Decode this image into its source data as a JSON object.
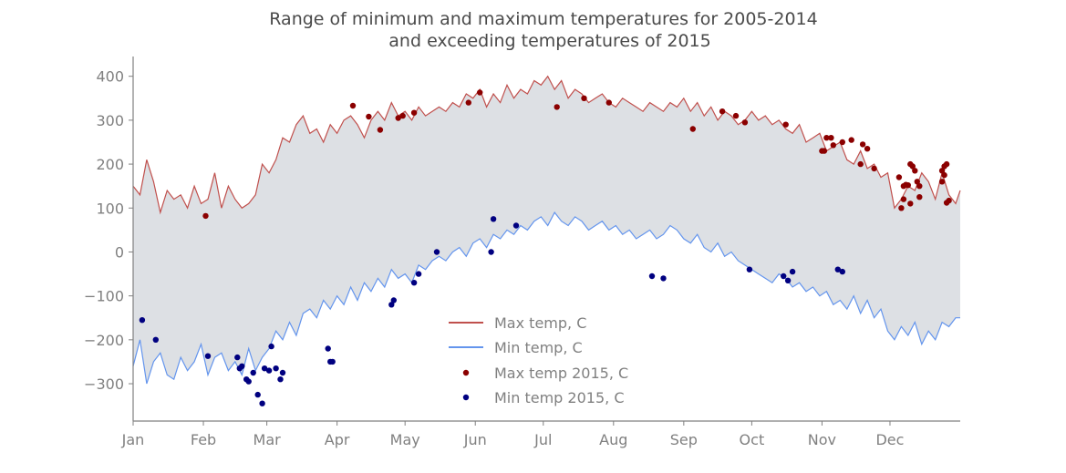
{
  "chart_data": {
    "type": "line",
    "title_line1": "Range of minimum and maximum temperatures for 2005-2014",
    "title_line2": "and exceeding temperatures of 2015",
    "xlabel": "",
    "ylabel": "",
    "xlim": [
      0,
      365
    ],
    "ylim": [
      -385,
      445
    ],
    "grid": false,
    "legend_position": "lower-center",
    "x_ticks": [
      {
        "label": "Jan",
        "day": 0
      },
      {
        "label": "Feb",
        "day": 31
      },
      {
        "label": "Mar",
        "day": 59
      },
      {
        "label": "Apr",
        "day": 90
      },
      {
        "label": "May",
        "day": 120
      },
      {
        "label": "Jun",
        "day": 151
      },
      {
        "label": "Jul",
        "day": 181
      },
      {
        "label": "Aug",
        "day": 212
      },
      {
        "label": "Sep",
        "day": 243
      },
      {
        "label": "Oct",
        "day": 273
      },
      {
        "label": "Nov",
        "day": 304
      },
      {
        "label": "Dec",
        "day": 334
      }
    ],
    "y_ticks": [
      {
        "label": "400",
        "value": 400
      },
      {
        "label": "300",
        "value": 300
      },
      {
        "label": "200",
        "value": 200
      },
      {
        "label": "100",
        "value": 100
      },
      {
        "label": "0",
        "value": 0
      },
      {
        "label": "−100",
        "value": -100
      },
      {
        "label": "−200",
        "value": -200
      },
      {
        "label": "−300",
        "value": -300
      }
    ],
    "colors": {
      "max_line": "#c0504d",
      "min_line": "#6495ed",
      "fill": "#dde0e4",
      "max_2015": "#8b0000",
      "min_2015": "#000080"
    },
    "series": [
      {
        "name": "Max temp, C",
        "type": "line",
        "x": [
          0,
          3,
          6,
          9,
          12,
          15,
          18,
          21,
          24,
          27,
          30,
          33,
          36,
          39,
          42,
          45,
          48,
          51,
          54,
          57,
          60,
          63,
          66,
          69,
          72,
          75,
          78,
          81,
          84,
          87,
          90,
          93,
          96,
          99,
          102,
          105,
          108,
          111,
          114,
          117,
          120,
          123,
          126,
          129,
          132,
          135,
          138,
          141,
          144,
          147,
          150,
          153,
          156,
          159,
          162,
          165,
          168,
          171,
          174,
          177,
          180,
          183,
          186,
          189,
          192,
          195,
          198,
          201,
          204,
          207,
          210,
          213,
          216,
          219,
          222,
          225,
          228,
          231,
          234,
          237,
          240,
          243,
          246,
          249,
          252,
          255,
          258,
          261,
          264,
          267,
          270,
          273,
          276,
          279,
          282,
          285,
          288,
          291,
          294,
          297,
          300,
          303,
          306,
          309,
          312,
          315,
          318,
          321,
          324,
          327,
          330,
          333,
          336,
          339,
          342,
          345,
          348,
          351,
          354,
          357,
          360,
          363,
          365
        ],
        "y": [
          150,
          130,
          210,
          160,
          90,
          140,
          120,
          130,
          100,
          150,
          110,
          120,
          180,
          100,
          150,
          120,
          100,
          110,
          130,
          200,
          180,
          210,
          260,
          250,
          290,
          310,
          270,
          280,
          250,
          290,
          270,
          300,
          310,
          290,
          260,
          300,
          320,
          300,
          340,
          310,
          320,
          300,
          330,
          310,
          320,
          330,
          320,
          340,
          330,
          360,
          350,
          370,
          330,
          360,
          340,
          380,
          350,
          370,
          360,
          390,
          380,
          400,
          370,
          390,
          350,
          370,
          360,
          340,
          350,
          360,
          340,
          330,
          350,
          340,
          330,
          320,
          340,
          330,
          320,
          340,
          330,
          350,
          320,
          340,
          310,
          330,
          300,
          320,
          310,
          290,
          300,
          320,
          300,
          310,
          290,
          300,
          280,
          270,
          290,
          250,
          260,
          270,
          230,
          240,
          250,
          210,
          200,
          230,
          190,
          200,
          170,
          180,
          100,
          120,
          150,
          140,
          180,
          160,
          120,
          180,
          130,
          110,
          140
        ]
      },
      {
        "name": "Min temp, C",
        "type": "line",
        "x": [
          0,
          3,
          6,
          9,
          12,
          15,
          18,
          21,
          24,
          27,
          30,
          33,
          36,
          39,
          42,
          45,
          48,
          51,
          54,
          57,
          60,
          63,
          66,
          69,
          72,
          75,
          78,
          81,
          84,
          87,
          90,
          93,
          96,
          99,
          102,
          105,
          108,
          111,
          114,
          117,
          120,
          123,
          126,
          129,
          132,
          135,
          138,
          141,
          144,
          147,
          150,
          153,
          156,
          159,
          162,
          165,
          168,
          171,
          174,
          177,
          180,
          183,
          186,
          189,
          192,
          195,
          198,
          201,
          204,
          207,
          210,
          213,
          216,
          219,
          222,
          225,
          228,
          231,
          234,
          237,
          240,
          243,
          246,
          249,
          252,
          255,
          258,
          261,
          264,
          267,
          270,
          273,
          276,
          279,
          282,
          285,
          288,
          291,
          294,
          297,
          300,
          303,
          306,
          309,
          312,
          315,
          318,
          321,
          324,
          327,
          330,
          333,
          336,
          339,
          342,
          345,
          348,
          351,
          354,
          357,
          360,
          363,
          365
        ],
        "y": [
          -260,
          -200,
          -300,
          -250,
          -230,
          -280,
          -290,
          -240,
          -270,
          -250,
          -210,
          -280,
          -240,
          -230,
          -270,
          -250,
          -280,
          -220,
          -270,
          -240,
          -220,
          -180,
          -200,
          -160,
          -190,
          -140,
          -130,
          -150,
          -110,
          -130,
          -100,
          -120,
          -80,
          -110,
          -70,
          -90,
          -60,
          -80,
          -40,
          -60,
          -50,
          -70,
          -30,
          -40,
          -20,
          -10,
          -20,
          0,
          10,
          -10,
          20,
          30,
          10,
          40,
          30,
          50,
          40,
          60,
          50,
          70,
          80,
          60,
          90,
          70,
          60,
          80,
          70,
          50,
          60,
          70,
          50,
          60,
          40,
          50,
          30,
          40,
          50,
          30,
          40,
          60,
          50,
          30,
          20,
          40,
          10,
          0,
          20,
          -10,
          0,
          -20,
          -30,
          -40,
          -50,
          -60,
          -70,
          -50,
          -60,
          -80,
          -70,
          -90,
          -80,
          -100,
          -90,
          -120,
          -110,
          -130,
          -100,
          -140,
          -110,
          -150,
          -130,
          -180,
          -200,
          -170,
          -190,
          -160,
          -210,
          -180,
          -200,
          -160,
          -170,
          -150,
          -150
        ]
      },
      {
        "name": "Max temp 2015, C",
        "type": "scatter",
        "x": [
          32,
          97,
          104,
          109,
          117,
          119,
          124,
          148,
          153,
          187,
          199,
          210,
          247,
          260,
          266,
          270,
          288,
          305,
          308,
          313,
          317,
          322,
          324,
          327,
          338,
          340,
          343,
          347,
          357,
          358,
          359
        ],
        "y": [
          82,
          333,
          308,
          278,
          305,
          310,
          317,
          340,
          363,
          330,
          350,
          340,
          280,
          320,
          310,
          295,
          290,
          230,
          260,
          250,
          255,
          245,
          235,
          190,
          170,
          150,
          110,
          125,
          160,
          195,
          200
        ],
        "points_extra": [
          [
            304,
            230
          ],
          [
            306,
            260
          ],
          [
            309,
            243
          ],
          [
            321,
            200
          ],
          [
            339,
            100
          ],
          [
            340,
            120
          ],
          [
            341,
            153
          ],
          [
            342,
            152
          ],
          [
            343,
            200
          ],
          [
            344,
            195
          ],
          [
            345,
            185
          ],
          [
            346,
            160
          ],
          [
            347,
            150
          ],
          [
            357,
            185
          ],
          [
            358,
            175
          ],
          [
            359,
            112
          ],
          [
            360,
            117
          ]
        ]
      },
      {
        "name": "Min temp 2015, C",
        "type": "scatter",
        "x": [
          4,
          10,
          33,
          46,
          47,
          48,
          50,
          51,
          53,
          55,
          57,
          58,
          60,
          61,
          63,
          65,
          66,
          86,
          87,
          88,
          114,
          115,
          124,
          126,
          134,
          158,
          159,
          169,
          229,
          234,
          272,
          287,
          289,
          291,
          311,
          313
        ],
        "y": [
          -155,
          -200,
          -237,
          -240,
          -265,
          -260,
          -290,
          -295,
          -275,
          -325,
          -345,
          -265,
          -270,
          -215,
          -265,
          -290,
          -275,
          -220,
          -250,
          -250,
          -120,
          -110,
          -70,
          -50,
          0,
          0,
          75,
          60,
          -55,
          -60,
          -40,
          -55,
          -65,
          -45,
          -40,
          -45
        ]
      }
    ]
  }
}
